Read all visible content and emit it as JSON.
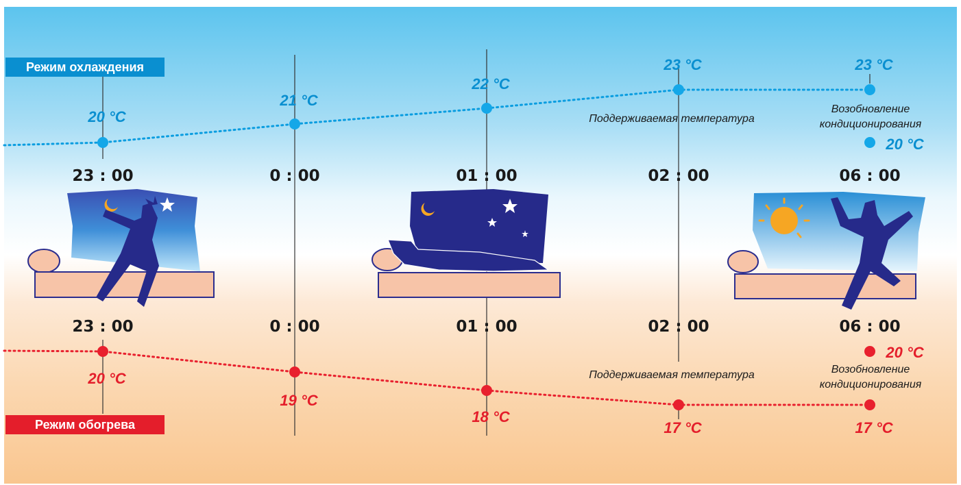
{
  "modes": {
    "cooling_label": "Режим охлаждения",
    "heating_label": "Режим обогрева",
    "cooling_color": "#0a8fd0",
    "heating_color": "#e41e2b"
  },
  "times": [
    "23 : 00",
    "0 : 00",
    "01 : 00",
    "02 : 00",
    "06 : 00"
  ],
  "cooling": {
    "temps": [
      "20 °C",
      "21 °C",
      "22 °C",
      "23 °C",
      "23 °C"
    ],
    "resume_temp": "20 °C",
    "maintained_note": "Поддерживаемая температура",
    "resume_note_line1": "Возобновление",
    "resume_note_line2": "кондиционирования"
  },
  "heating": {
    "temps": [
      "20 °C",
      "19 °C",
      "18 °C",
      "17 °C",
      "17 °C"
    ],
    "resume_temp": "20 °C",
    "maintained_note": "Поддерживаемая температура",
    "resume_note_line1": "Возобновление",
    "resume_note_line2": "кондиционирования"
  },
  "icons": [
    "sleeping-person-icon",
    "moon-icon",
    "star-icon",
    "sun-icon",
    "bed-icon",
    "pillow-icon"
  ]
}
